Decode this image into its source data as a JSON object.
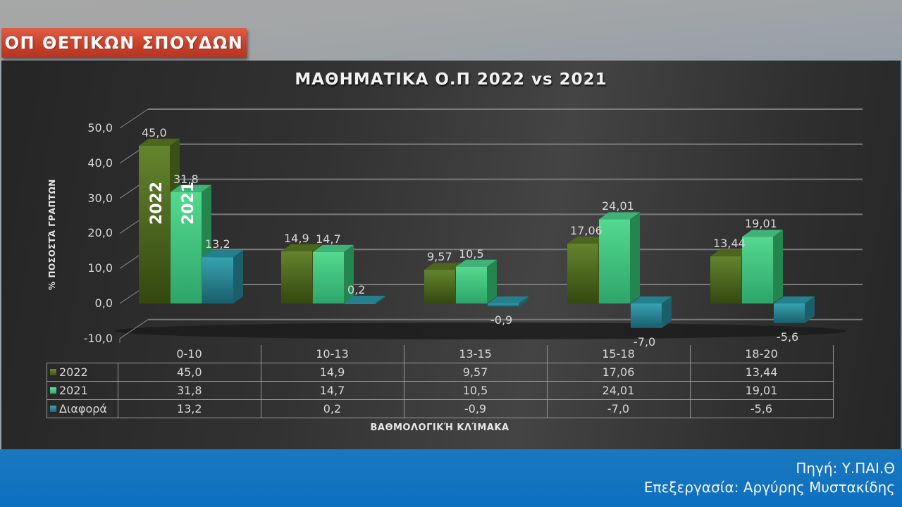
{
  "header": {
    "section_badge": "ΟΠ ΘΕΤΙΚΩΝ ΣΠΟΥΔΩΝ"
  },
  "colors": {
    "series_2022": "#4f6b22",
    "series_2021": "#3fcf84",
    "series_diff": "#2a8fa0",
    "badge": "#c9402a",
    "footer_band": "#1373bf"
  },
  "chart_data": {
    "type": "bar",
    "title": "ΜΑΘΗΜΑΤΙΚΑ  Ο.Π 2022 vs 2021",
    "xlabel": "ΒΑΘΜΟΛΟΓΙΚΉ ΚΛΊΜΑΚΑ",
    "ylabel": "% ΠΟΣΟΣΤΆ ΓΡΑΠΤΩΝ",
    "ylim": [
      -10,
      50
    ],
    "yticks": [
      "-10,0",
      "0,0",
      "10,0",
      "20,0",
      "30,0",
      "40,0",
      "50,0"
    ],
    "grid": true,
    "legend_position": "data-table",
    "categories": [
      "0-10",
      "10-13",
      "13-15",
      "15-18",
      "18-20"
    ],
    "series": [
      {
        "name": "2022",
        "values": [
          45.0,
          14.9,
          9.57,
          17.06,
          13.44
        ],
        "labels": [
          "45,0",
          "14,9",
          "9,57",
          "17,06",
          "13,44"
        ]
      },
      {
        "name": "2021",
        "values": [
          31.8,
          14.7,
          10.5,
          24.01,
          19.01
        ],
        "labels": [
          "31,8",
          "14,7",
          "10,5",
          "24,01",
          "19,01"
        ]
      },
      {
        "name": "Διαφορά",
        "values": [
          13.2,
          0.2,
          -0.9,
          -7.0,
          -5.6
        ],
        "labels": [
          "13,2",
          "0,2",
          "-0,9",
          "-7,0",
          "-5,6"
        ]
      }
    ],
    "bar_annotations": [
      "2022",
      "2021"
    ]
  },
  "footer": {
    "source": "Πηγή: Υ.ΠΑΙ.Θ",
    "credit": "Επεξεργασία: Αργύρης Μυστακίδης"
  }
}
